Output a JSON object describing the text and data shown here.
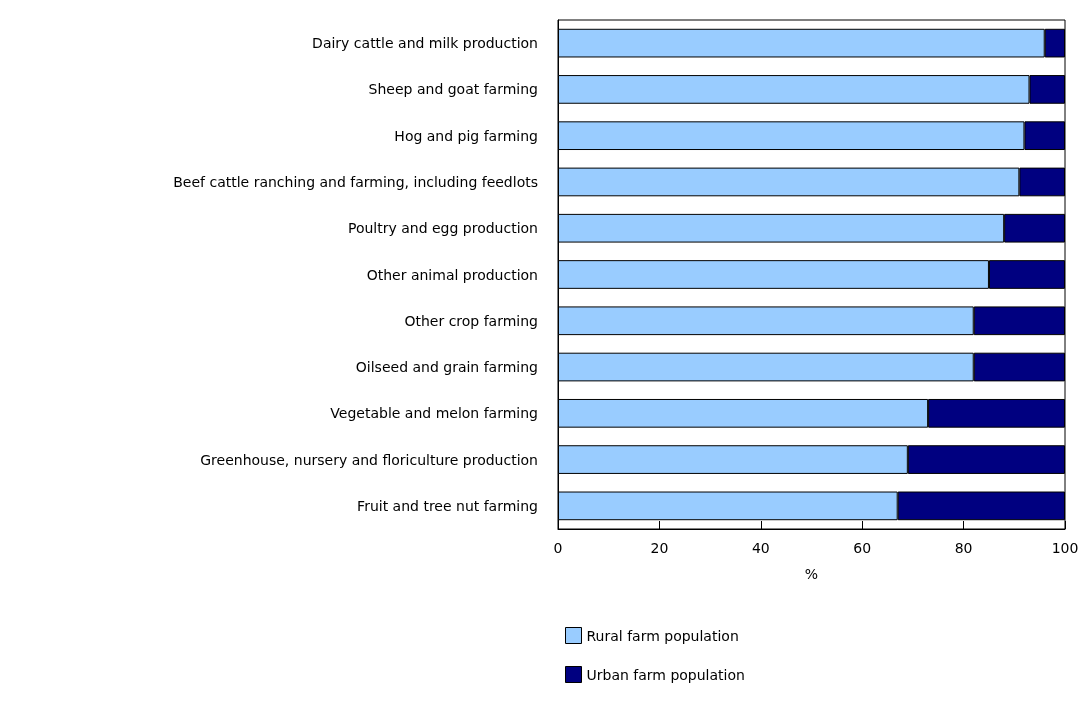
{
  "chart_data": {
    "type": "bar",
    "orientation": "horizontal",
    "stacked": true,
    "xlabel": "%",
    "categories": [
      "Dairy cattle and milk production",
      "Sheep and goat farming",
      "Hog and pig farming",
      "Beef cattle ranching and farming, including feedlots",
      "Poultry and egg production",
      "Other animal production",
      "Other crop farming",
      "Oilseed and grain farming",
      "Vegetable and melon farming",
      "Greenhouse, nursery and floriculture production",
      "Fruit and tree nut farming"
    ],
    "series": [
      {
        "name": "Rural farm population",
        "color": "#99ccff",
        "values": [
          96,
          93,
          92,
          91,
          88,
          85,
          82,
          82,
          73,
          69,
          67
        ]
      },
      {
        "name": "Urban farm population",
        "color": "#000080",
        "values": [
          4,
          7,
          8,
          9,
          12,
          15,
          18,
          18,
          27,
          31,
          33
        ]
      }
    ],
    "xlim": [
      0,
      100
    ],
    "xticks": [
      0,
      20,
      40,
      60,
      80,
      100
    ],
    "grid": false,
    "legend": "bottom"
  }
}
